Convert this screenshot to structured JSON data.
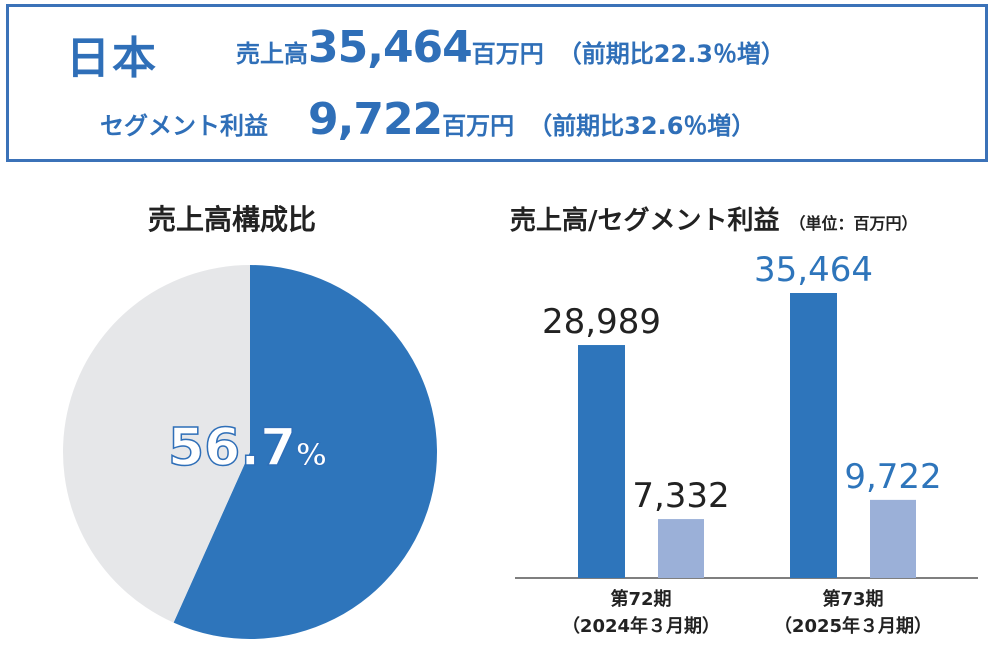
{
  "summary": {
    "region": "日本",
    "sales_label": "売上高",
    "sales_value": "35,464",
    "sales_unit": "百万円",
    "sales_note": "（前期比22.3％増）",
    "profit_label": "セグメント利益",
    "profit_value": "9,722",
    "profit_unit": "百万円",
    "profit_note": "（前期比32.6％増）"
  },
  "colors": {
    "primary": "#2e75bb",
    "secondary": "#9bb0d8",
    "pie_rest": "#e6e7e9",
    "text_dark": "#222222"
  },
  "chart_data": [
    {
      "type": "pie",
      "title": "売上高構成比",
      "values": [
        56.7,
        43.3
      ],
      "label_value": "56.7",
      "label_unit": "%"
    },
    {
      "type": "bar",
      "title": "売上高/セグメント利益",
      "unit_note": "（単位：百万円）",
      "categories": [
        "第72期\n（2024年３月期）",
        "第73期\n（2025年３月期）"
      ],
      "category_lines": [
        [
          "第72期",
          "（2024年３月期）"
        ],
        [
          "第73期",
          "（2025年３月期）"
        ]
      ],
      "series": [
        {
          "name": "売上高",
          "values": [
            28989,
            35464
          ],
          "labels": [
            "28,989",
            "35,464"
          ]
        },
        {
          "name": "セグメント利益",
          "values": [
            7332,
            9722
          ],
          "labels": [
            "7,332",
            "9,722"
          ]
        }
      ],
      "ylim": [
        0,
        35464
      ]
    }
  ]
}
